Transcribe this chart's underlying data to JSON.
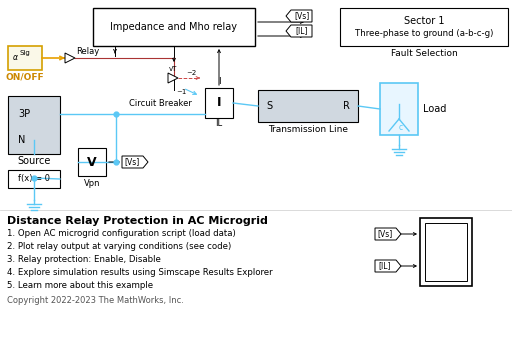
{
  "bg_color": "#ffffff",
  "title": "Distance Relay Protection in AC Microgrid",
  "items": [
    "1. Open AC microgrid configuration script (load data)",
    "2. Plot relay output at varying conditions (see code)",
    "3. Relay protection: Enable, Disable",
    "4. Explore simulation results using Simscape Results Explorer",
    "5. Learn more about this example"
  ],
  "copyright": "Copyright 2022-2023 The MathWorks, Inc.",
  "blue_wire": "#5bc8f5",
  "dark_blue_wire": "#4488cc",
  "orange": "#e8a000",
  "red_dashed": "#cc4444",
  "gray_block": "#d0d8e0"
}
